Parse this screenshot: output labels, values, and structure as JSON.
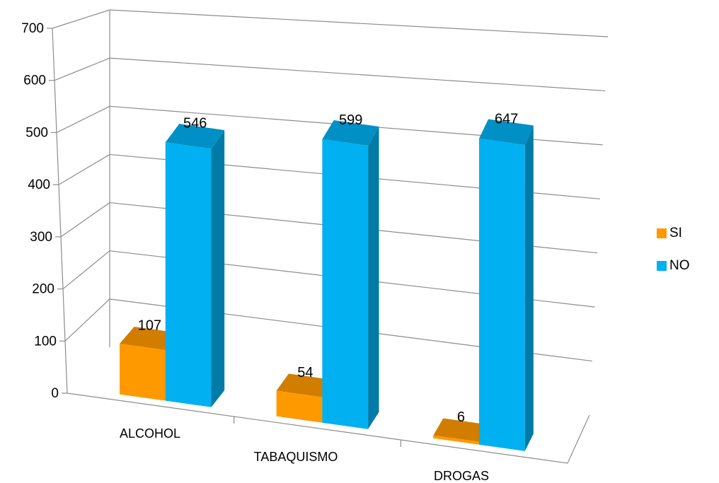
{
  "chart_data": {
    "type": "bar",
    "categories": [
      "ALCOHOL",
      "TABAQUISMO",
      "DROGAS"
    ],
    "series": [
      {
        "name": "SI",
        "values": [
          107,
          54,
          6
        ],
        "color": "#FF9900"
      },
      {
        "name": "NO",
        "values": [
          546,
          599,
          647
        ],
        "color": "#00B0F0"
      }
    ],
    "ylim": [
      0,
      700
    ],
    "yticks": [
      0,
      100,
      200,
      300,
      400,
      500,
      600,
      700
    ],
    "title": "",
    "xlabel": "",
    "ylabel": "",
    "grid": true,
    "legend_position": "right",
    "three_d": true
  }
}
